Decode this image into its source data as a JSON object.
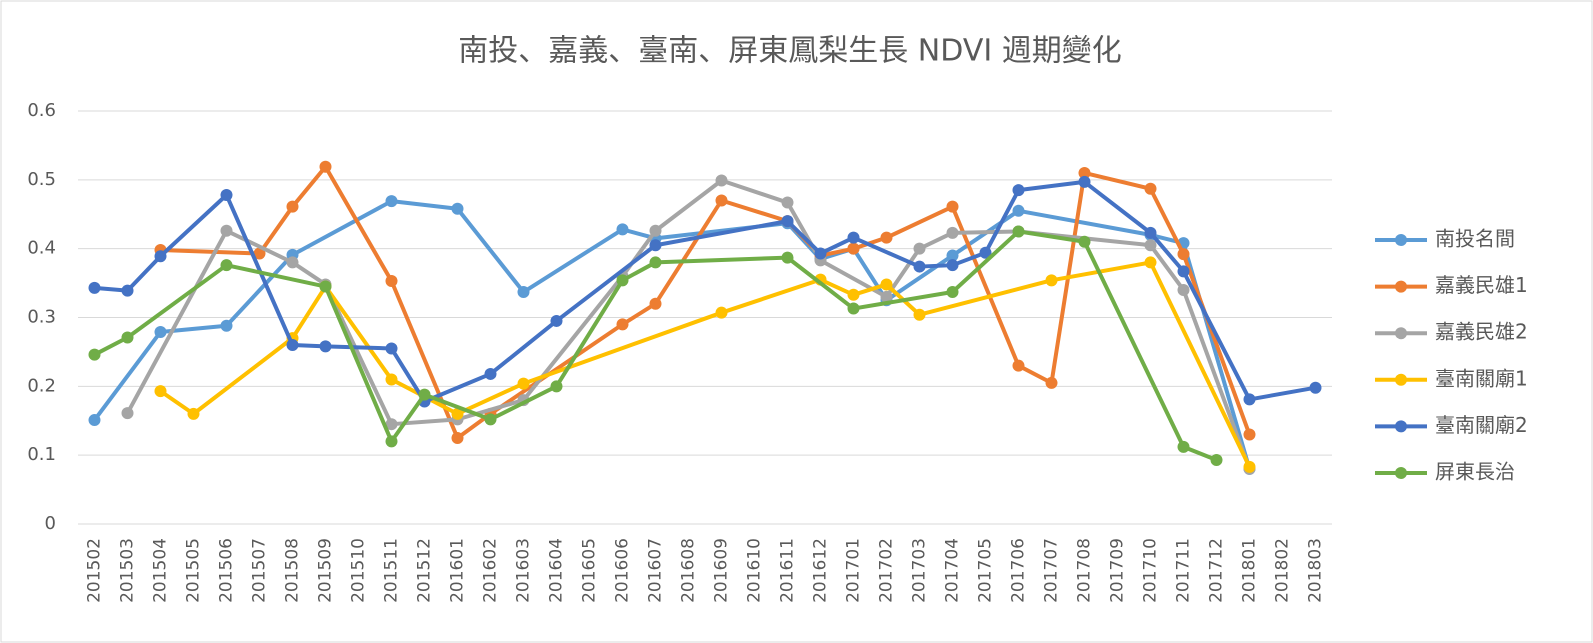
{
  "chart_data": {
    "type": "line",
    "title": "南投、嘉義、臺南、屏東鳳梨生長 NDVI 週期變化",
    "categories": [
      "201502",
      "201503",
      "201504",
      "201505",
      "201506",
      "201507",
      "201508",
      "201509",
      "201510",
      "201511",
      "201512",
      "201601",
      "201602",
      "201603",
      "201604",
      "201605",
      "201606",
      "201607",
      "201608",
      "201609",
      "201610",
      "201611",
      "201612",
      "201701",
      "201702",
      "201703",
      "201704",
      "201705",
      "201706",
      "201707",
      "201708",
      "201709",
      "201710",
      "201711",
      "201712",
      "201801",
      "201802",
      "201803"
    ],
    "series": [
      {
        "name": "南投名間",
        "color": "#5b9bd5",
        "values": [
          0.151,
          null,
          0.279,
          null,
          0.288,
          null,
          0.391,
          null,
          null,
          0.469,
          null,
          0.458,
          null,
          0.337,
          null,
          null,
          0.428,
          0.415,
          null,
          null,
          null,
          0.437,
          0.385,
          0.4,
          0.325,
          null,
          0.39,
          null,
          0.455,
          null,
          null,
          null,
          0.42,
          0.408,
          null,
          0.08,
          null,
          null
        ]
      },
      {
        "name": "嘉義民雄1",
        "color": "#ed7d31",
        "values": [
          null,
          null,
          0.398,
          null,
          null,
          0.393,
          0.461,
          0.519,
          null,
          0.353,
          null,
          0.125,
          0.16,
          null,
          null,
          null,
          0.29,
          0.32,
          null,
          0.47,
          null,
          0.44,
          0.39,
          0.4,
          0.416,
          null,
          0.461,
          null,
          0.23,
          0.205,
          0.51,
          null,
          0.487,
          0.392,
          null,
          0.13,
          null,
          null
        ]
      },
      {
        "name": "嘉義民雄2",
        "color": "#a5a5a5",
        "values": [
          null,
          0.161,
          null,
          null,
          0.426,
          null,
          0.38,
          0.348,
          null,
          0.145,
          null,
          0.152,
          null,
          0.18,
          null,
          null,
          0.36,
          0.426,
          null,
          0.499,
          null,
          0.467,
          0.383,
          null,
          0.33,
          0.4,
          0.423,
          null,
          0.425,
          null,
          null,
          null,
          0.405,
          0.34,
          null,
          0.08,
          null,
          null
        ]
      },
      {
        "name": "臺南關廟1",
        "color": "#ffc000",
        "values": [
          null,
          null,
          0.193,
          0.16,
          null,
          null,
          0.27,
          0.345,
          null,
          0.21,
          null,
          0.16,
          null,
          0.204,
          null,
          null,
          null,
          null,
          null,
          0.307,
          null,
          null,
          0.355,
          0.333,
          0.348,
          0.304,
          null,
          null,
          null,
          0.354,
          null,
          null,
          0.38,
          null,
          null,
          0.083,
          null,
          null
        ]
      },
      {
        "name": "臺南關廟2",
        "color": "#4472c4",
        "values": [
          0.343,
          0.339,
          0.389,
          null,
          0.478,
          null,
          0.26,
          0.258,
          null,
          0.255,
          0.178,
          null,
          0.218,
          null,
          0.295,
          null,
          null,
          0.405,
          null,
          null,
          null,
          0.44,
          0.393,
          0.416,
          null,
          0.374,
          0.376,
          0.394,
          0.485,
          null,
          0.497,
          null,
          0.423,
          0.367,
          null,
          0.181,
          null,
          0.198
        ]
      },
      {
        "name": "屏東長治",
        "color": "#70ad47",
        "values": [
          0.246,
          0.271,
          null,
          null,
          0.376,
          null,
          null,
          0.345,
          null,
          0.12,
          0.188,
          null,
          0.152,
          null,
          0.2,
          null,
          0.354,
          0.38,
          null,
          null,
          null,
          0.387,
          null,
          0.313,
          null,
          null,
          0.337,
          null,
          0.425,
          null,
          0.41,
          null,
          null,
          0.112,
          0.093,
          null,
          null,
          null
        ]
      }
    ],
    "ylim": [
      0,
      0.6
    ],
    "yticks": [
      0,
      0.1,
      0.2,
      0.3,
      0.4,
      0.5,
      0.6
    ],
    "grid": true,
    "legend": "right",
    "connect_gaps": true
  }
}
